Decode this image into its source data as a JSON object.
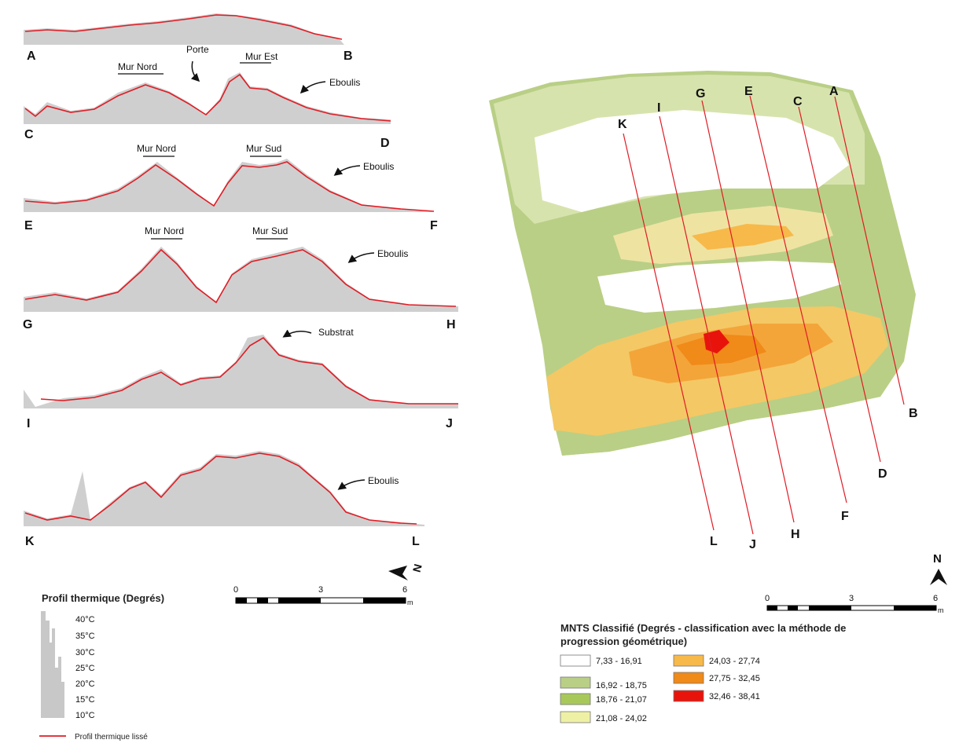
{
  "profiles": [
    {
      "start": "A",
      "end": "B",
      "annotations": [],
      "arrow_label": ""
    },
    {
      "start": "C",
      "end": "D",
      "annotations": [
        "Mur Nord",
        "Porte",
        "Mur Est"
      ],
      "arrow_label": "Eboulis"
    },
    {
      "start": "E",
      "end": "F",
      "annotations": [
        "Mur Nord",
        "Mur Sud"
      ],
      "arrow_label": "Eboulis"
    },
    {
      "start": "G",
      "end": "H",
      "annotations": [
        "Mur Nord",
        "Mur Sud"
      ],
      "arrow_label": "Eboulis"
    },
    {
      "start": "I",
      "end": "J",
      "annotations": [],
      "arrow_label": "Substrat"
    },
    {
      "start": "K",
      "end": "L",
      "annotations": [],
      "arrow_label": "Eboulis"
    }
  ],
  "profile_legend": {
    "title": "Profil thermique (Degrés)",
    "ticks": [
      "40°C",
      "35°C",
      "30°C",
      "25°C",
      "20°C",
      "15°C",
      "10°C"
    ],
    "smoothed_label": "Profil thermique lissé",
    "smoothed_color": "#e01b24",
    "raw_color": "#c8c8c8"
  },
  "scale_left": {
    "ticks": [
      "0",
      "3",
      "6"
    ],
    "unit": "m"
  },
  "scale_right": {
    "ticks": [
      "0",
      "3",
      "6"
    ],
    "unit": "m"
  },
  "north_left": "N",
  "north_right": "N",
  "map": {
    "transect_starts": [
      "K",
      "I",
      "G",
      "E",
      "C",
      "A"
    ],
    "transect_ends": [
      "L",
      "J",
      "H",
      "F",
      "D",
      "B"
    ],
    "line_color": "#e01b24"
  },
  "classification_legend": {
    "title_line1": "MNTS Classifié (Degrés - classification avec la méthode de",
    "title_line2": "progression géométrique)",
    "classes": [
      {
        "label": "7,33 - 16,91",
        "color": "#ffffff"
      },
      {
        "label": "16,92 - 18,75",
        "color": "#b9cf86"
      },
      {
        "label": "18,76 - 21,07",
        "color": "#a8c95a"
      },
      {
        "label": "21,08 - 24,02",
        "color": "#eef0a4"
      },
      {
        "label": "24,03 - 27,74",
        "color": "#f7b94a"
      },
      {
        "label": "27,75 - 32,45",
        "color": "#f08a18"
      },
      {
        "label": "32,46 - 38,41",
        "color": "#e8140c"
      }
    ]
  }
}
